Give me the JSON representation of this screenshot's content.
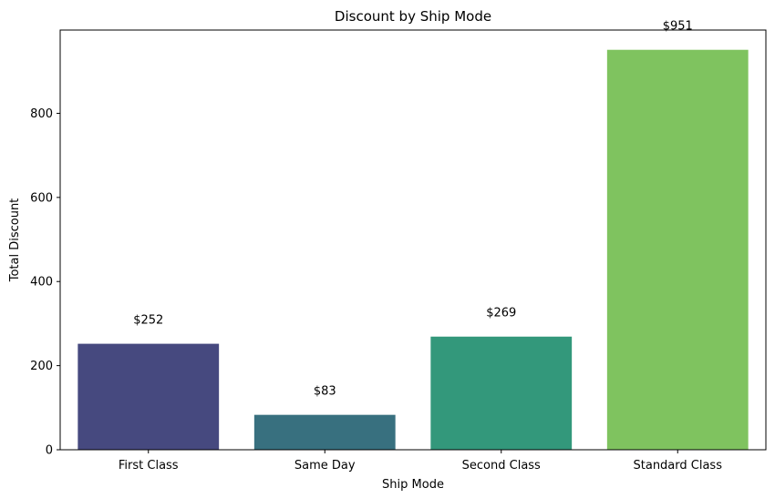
{
  "chart_data": {
    "type": "bar",
    "title": "Discount by Ship Mode",
    "xlabel": "Ship Mode",
    "ylabel": "Total Discount",
    "categories": [
      "First Class",
      "Same Day",
      "Second Class",
      "Standard Class"
    ],
    "values": [
      252,
      83,
      269,
      951
    ],
    "data_labels": [
      "$252",
      "$83",
      "$269",
      "$951"
    ],
    "colors": [
      "#46497f",
      "#38707f",
      "#33987b",
      "#7fc35f"
    ],
    "ylim": [
      0,
      998
    ],
    "yticks": [
      0,
      200,
      400,
      600,
      800
    ],
    "grid": false,
    "legend": "none"
  }
}
